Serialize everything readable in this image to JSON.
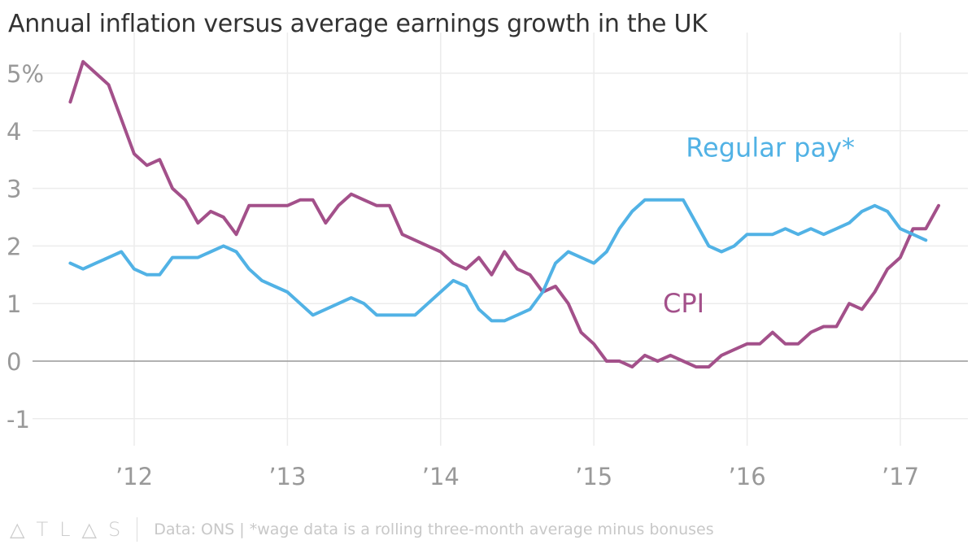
{
  "chart_data": {
    "type": "line",
    "title": "Annual inflation versus average earnings growth in the UK",
    "xlabel": "",
    "ylabel": "",
    "ylim": [
      -1.43,
      5.63
    ],
    "xlim": [
      2011.38,
      2017.5
    ],
    "grid": true,
    "y_ticks": [
      {
        "v": 5,
        "label": "5%"
      },
      {
        "v": 4,
        "label": "4"
      },
      {
        "v": 3,
        "label": "3"
      },
      {
        "v": 2,
        "label": "2"
      },
      {
        "v": 1,
        "label": "1"
      },
      {
        "v": 0,
        "label": "0"
      },
      {
        "v": -1,
        "label": "-1"
      }
    ],
    "x_ticks": [
      {
        "v": 2012,
        "label": "’12"
      },
      {
        "v": 2013,
        "label": "’13"
      },
      {
        "v": 2014,
        "label": "’14"
      },
      {
        "v": 2015,
        "label": "’15"
      },
      {
        "v": 2016,
        "label": "’16"
      },
      {
        "v": 2017,
        "label": "’17"
      }
    ],
    "start": 2011.583,
    "step": 0.08333,
    "series": [
      {
        "name": "CPI",
        "color": "#a3508a",
        "values": [
          4.5,
          5.2,
          5.0,
          4.8,
          4.2,
          3.6,
          3.4,
          3.5,
          3.0,
          2.8,
          2.4,
          2.6,
          2.5,
          2.2,
          2.7,
          2.7,
          2.7,
          2.7,
          2.8,
          2.8,
          2.4,
          2.7,
          2.9,
          2.8,
          2.7,
          2.7,
          2.2,
          2.1,
          2.0,
          1.9,
          1.7,
          1.6,
          1.8,
          1.5,
          1.9,
          1.6,
          1.5,
          1.2,
          1.3,
          1.0,
          0.5,
          0.3,
          0.0,
          0.0,
          -0.1,
          0.1,
          0.0,
          0.1,
          0.0,
          -0.1,
          -0.1,
          0.1,
          0.2,
          0.3,
          0.3,
          0.5,
          0.3,
          0.3,
          0.5,
          0.6,
          0.6,
          1.0,
          0.9,
          1.2,
          1.6,
          1.8,
          2.3,
          2.3,
          2.7
        ],
        "label": "CPI",
        "label_at": [
          2015.45,
          0.85
        ]
      },
      {
        "name": "Regular pay*",
        "color": "#51b2e5",
        "values": [
          1.7,
          1.6,
          1.7,
          1.8,
          1.9,
          1.6,
          1.5,
          1.5,
          1.8,
          1.8,
          1.8,
          1.9,
          2.0,
          1.9,
          1.6,
          1.4,
          1.3,
          1.2,
          1.0,
          0.8,
          0.9,
          1.0,
          1.1,
          1.0,
          0.8,
          0.8,
          0.8,
          0.8,
          1.0,
          1.2,
          1.4,
          1.3,
          0.9,
          0.7,
          0.7,
          0.8,
          0.9,
          1.2,
          1.7,
          1.9,
          1.8,
          1.7,
          1.9,
          2.3,
          2.6,
          2.8,
          2.8,
          2.8,
          2.8,
          2.4,
          2.0,
          1.9,
          2.0,
          2.2,
          2.2,
          2.2,
          2.3,
          2.2,
          2.3,
          2.2,
          2.3,
          2.4,
          2.6,
          2.7,
          2.6,
          2.3,
          2.2,
          2.1
        ],
        "label": "Regular pay*",
        "label_at": [
          2015.6,
          3.55
        ]
      }
    ]
  },
  "footer": {
    "logo": "ATLAS",
    "source": "Data: ONS | *wage data is a rolling three-month average minus bonuses"
  }
}
